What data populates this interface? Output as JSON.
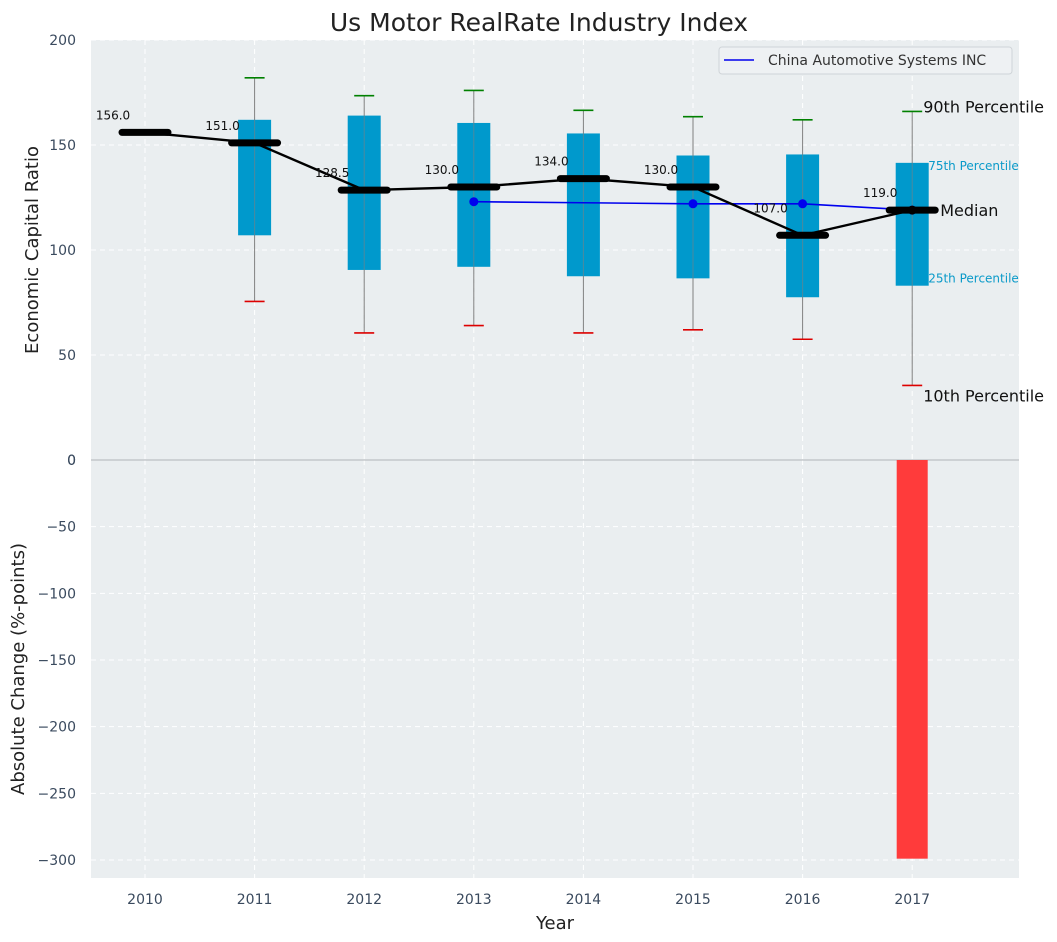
{
  "chart_data": [
    {
      "type": "box",
      "title": "Us Motor RealRate Industry Index",
      "xlabel": "",
      "ylabel": "Economic Capital Ratio",
      "ylim": [
        0,
        200
      ],
      "yticks": [
        0,
        50,
        100,
        150,
        200
      ],
      "categories": [
        "2010",
        "2011",
        "2012",
        "2013",
        "2014",
        "2015",
        "2016",
        "2017"
      ],
      "grid": true,
      "legend_position": "top-right",
      "boxes": [
        {
          "year": "2010",
          "p10": null,
          "p25": null,
          "median": 156.0,
          "p75": null,
          "p90": null
        },
        {
          "year": "2011",
          "p10": 75.5,
          "p25": 107,
          "median": 151.0,
          "p75": 162,
          "p90": 182
        },
        {
          "year": "2012",
          "p10": 60.5,
          "p25": 90.5,
          "median": 128.5,
          "p75": 164,
          "p90": 173.5
        },
        {
          "year": "2013",
          "p10": 64,
          "p25": 92,
          "median": 130.0,
          "p75": 160.5,
          "p90": 176
        },
        {
          "year": "2014",
          "p10": 60.5,
          "p25": 87.5,
          "median": 134.0,
          "p75": 155.5,
          "p90": 166.5
        },
        {
          "year": "2015",
          "p10": 62,
          "p25": 86.5,
          "median": 130.0,
          "p75": 145,
          "p90": 163.5
        },
        {
          "year": "2016",
          "p10": 57.5,
          "p25": 77.5,
          "median": 107.0,
          "p75": 145.5,
          "p90": 162
        },
        {
          "year": "2017",
          "p10": 35.5,
          "p25": 83,
          "median": 119.0,
          "p75": 141.5,
          "p90": 166
        }
      ],
      "median_labels": [
        "156.0",
        "151.0",
        "128.5",
        "130.0",
        "134.0",
        "130.0",
        "107.0",
        "119.0"
      ],
      "series": [
        {
          "name": "China Automotive Systems INC",
          "color": "#0000ee",
          "x": [
            "2013",
            "2014",
            "2015",
            "2016",
            "2017"
          ],
          "values": [
            123,
            122.5,
            122,
            122,
            119
          ],
          "markers": [
            "2013",
            "2015",
            "2016",
            "2017"
          ]
        }
      ],
      "annotations": {
        "p90": "90th Percentile",
        "p75": "75th Percentile",
        "median": "Median",
        "p25": "25th Percentile",
        "p10": "10th Percentile"
      },
      "colors": {
        "box": "#0099cc",
        "median_line": "#000000",
        "p90_cap": "#008000",
        "p10_cap": "#dd0000",
        "series": "#0000ee",
        "background": "#eaeef0"
      }
    },
    {
      "type": "bar",
      "xlabel": "Year",
      "ylabel": "Absolute Change (%-points)",
      "categories": [
        "2010",
        "2011",
        "2012",
        "2013",
        "2014",
        "2015",
        "2016",
        "2017"
      ],
      "values": [
        null,
        null,
        null,
        null,
        null,
        null,
        null,
        -299
      ],
      "ylim": [
        -315,
        0
      ],
      "yticks": [
        0,
        -50,
        -100,
        -150,
        -200,
        -250,
        -300
      ],
      "ytick_labels": [
        "0",
        "−50",
        "−100",
        "−150",
        "−200",
        "−250",
        "−300"
      ],
      "grid": true,
      "colors": {
        "bar": "#ff3b3b",
        "background": "#eaeef0"
      }
    }
  ]
}
